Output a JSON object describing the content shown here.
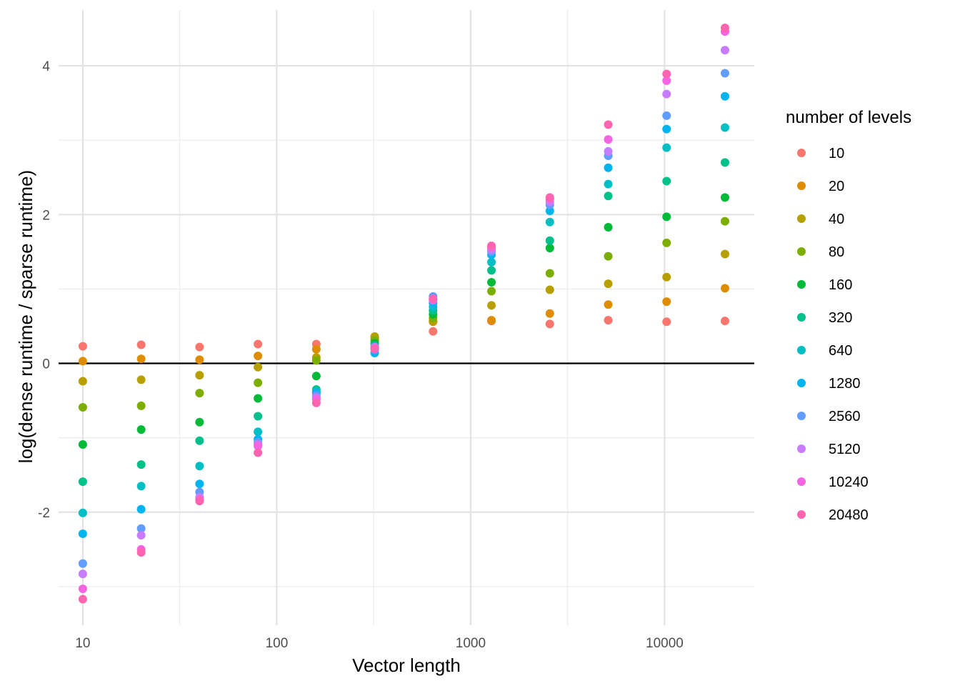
{
  "chart_data": {
    "type": "scatter",
    "title": "",
    "xlabel": "Vector length",
    "ylabel": "log(dense runtime / sparse runtime)",
    "x_scale": "log10",
    "xlim": [
      7.5,
      29000
    ],
    "ylim": [
      -3.52,
      4.75
    ],
    "x_ticks": [
      {
        "value": 10,
        "label": "10"
      },
      {
        "value": 100,
        "label": "100"
      },
      {
        "value": 1000,
        "label": "1000"
      },
      {
        "value": 10000,
        "label": "10000"
      }
    ],
    "y_ticks": [
      {
        "value": -2,
        "label": "-2"
      },
      {
        "value": 0,
        "label": "0"
      },
      {
        "value": 2,
        "label": "2"
      },
      {
        "value": 4,
        "label": "4"
      }
    ],
    "grid": true,
    "reference_line_y": 0,
    "legend": {
      "title": "number of levels",
      "position": "right"
    },
    "x": [
      10,
      20,
      40,
      80,
      160,
      320,
      640,
      1280,
      2560,
      5120,
      10240,
      20480
    ],
    "series": [
      {
        "name": "10",
        "color": "#F8766D",
        "values": [
          0.23,
          0.25,
          0.22,
          0.26,
          0.26,
          0.33,
          0.43,
          0.57,
          0.53,
          0.58,
          0.56,
          0.57
        ]
      },
      {
        "name": "20",
        "color": "#DE8C00",
        "values": [
          0.03,
          0.06,
          0.05,
          0.1,
          0.19,
          0.35,
          0.56,
          0.58,
          0.67,
          0.79,
          0.83,
          1.01
        ]
      },
      {
        "name": "40",
        "color": "#B79F00",
        "values": [
          -0.24,
          -0.22,
          -0.16,
          -0.05,
          0.08,
          0.36,
          0.57,
          0.78,
          0.99,
          1.07,
          1.16,
          1.47
        ]
      },
      {
        "name": "80",
        "color": "#7CAE00",
        "values": [
          -0.59,
          -0.57,
          -0.4,
          -0.26,
          0.04,
          0.31,
          0.61,
          0.97,
          1.21,
          1.44,
          1.62,
          1.91
        ]
      },
      {
        "name": "160",
        "color": "#00BA38",
        "values": [
          -1.09,
          -0.89,
          -0.79,
          -0.47,
          -0.17,
          0.27,
          0.66,
          1.09,
          1.55,
          1.83,
          1.97,
          2.23
        ]
      },
      {
        "name": "320",
        "color": "#00C08B",
        "values": [
          -1.59,
          -1.36,
          -1.04,
          -0.71,
          -0.35,
          0.24,
          0.71,
          1.25,
          1.65,
          2.25,
          2.45,
          2.7
        ]
      },
      {
        "name": "640",
        "color": "#00BFC4",
        "values": [
          -2.01,
          -1.65,
          -1.38,
          -0.92,
          -0.38,
          0.2,
          0.76,
          1.36,
          1.9,
          2.41,
          2.9,
          3.17
        ]
      },
      {
        "name": "1280",
        "color": "#00B4F0",
        "values": [
          -2.29,
          -1.96,
          -1.62,
          -1.02,
          -0.4,
          0.14,
          0.81,
          1.46,
          2.05,
          2.63,
          3.15,
          3.59
        ]
      },
      {
        "name": "2560",
        "color": "#619CFF",
        "values": [
          -2.69,
          -2.22,
          -1.73,
          -1.06,
          -0.43,
          0.21,
          0.9,
          1.5,
          2.13,
          2.79,
          3.33,
          3.9
        ]
      },
      {
        "name": "5120",
        "color": "#C77CFF",
        "values": [
          -2.83,
          -2.31,
          -1.8,
          -1.09,
          -0.46,
          0.22,
          0.85,
          1.53,
          2.17,
          2.85,
          3.62,
          4.21
        ]
      },
      {
        "name": "10240",
        "color": "#F564E3",
        "values": [
          -3.03,
          -2.5,
          -1.83,
          -1.11,
          -0.48,
          0.19,
          0.85,
          1.56,
          2.21,
          3.01,
          3.8,
          4.46
        ]
      },
      {
        "name": "20480",
        "color": "#FF64B0",
        "values": [
          -3.17,
          -2.54,
          -1.85,
          -1.2,
          -0.53,
          0.2,
          0.87,
          1.58,
          2.23,
          3.21,
          3.89,
          4.51
        ]
      }
    ]
  }
}
